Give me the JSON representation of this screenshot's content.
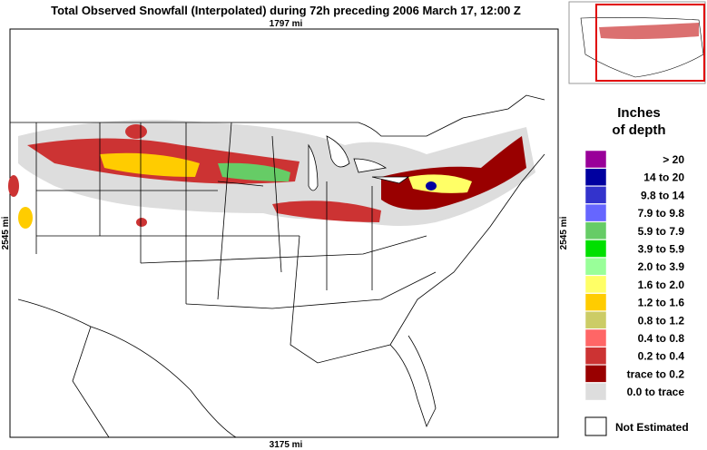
{
  "header": {
    "title": "Total Observed Snowfall (Interpolated) during 72h preceding 2006 March 17, 12:00 Z"
  },
  "map": {
    "top_distance": "1797 mi",
    "bottom_distance": "3175 mi",
    "left_distance": "2545 mi",
    "right_distance": "2545 mi"
  },
  "legend": {
    "title_line1": "Inches",
    "title_line2": "of depth",
    "items": [
      {
        "label": "> 20",
        "color": "#990099"
      },
      {
        "label": "14 to 20",
        "color": "#0000a0"
      },
      {
        "label": "9.8 to 14",
        "color": "#3333cc"
      },
      {
        "label": "7.9 to 9.8",
        "color": "#6666ff"
      },
      {
        "label": "5.9 to 7.9",
        "color": "#66cc66"
      },
      {
        "label": "3.9 to 5.9",
        "color": "#00e000"
      },
      {
        "label": "2.0 to 3.9",
        "color": "#99ff99"
      },
      {
        "label": "1.6 to 2.0",
        "color": "#ffff66"
      },
      {
        "label": "1.2 to 1.6",
        "color": "#ffcc00"
      },
      {
        "label": "0.8 to 1.2",
        "color": "#cccc66"
      },
      {
        "label": "0.4 to 0.8",
        "color": "#ff6666"
      },
      {
        "label": "0.2 to 0.4",
        "color": "#cc3333"
      },
      {
        "label": "trace to 0.2",
        "color": "#990000"
      },
      {
        "label": "0.0 to trace",
        "color": "#dddddd"
      }
    ],
    "not_estimated": "Not Estimated"
  }
}
